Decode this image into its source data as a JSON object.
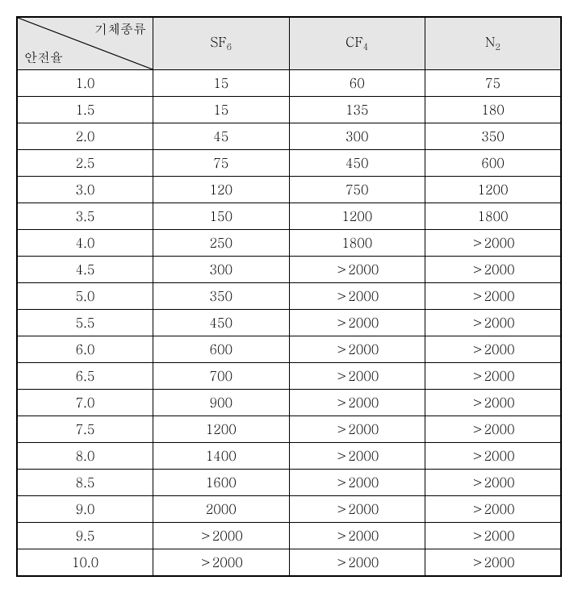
{
  "table": {
    "diag_header": {
      "top": "기체종류",
      "bottom": "안전율"
    },
    "column_headers": [
      {
        "text": "SF",
        "sub": "6"
      },
      {
        "text": "CF",
        "sub": "4"
      },
      {
        "text": "N",
        "sub": "2"
      }
    ],
    "rows": [
      {
        "label": "1.0",
        "cells": [
          "15",
          "60",
          "75"
        ]
      },
      {
        "label": "1.5",
        "cells": [
          "15",
          "135",
          "180"
        ]
      },
      {
        "label": "2.0",
        "cells": [
          "45",
          "300",
          "350"
        ]
      },
      {
        "label": "2.5",
        "cells": [
          "75",
          "450",
          "600"
        ]
      },
      {
        "label": "3.0",
        "cells": [
          "120",
          "750",
          "1200"
        ]
      },
      {
        "label": "3.5",
        "cells": [
          "150",
          "1200",
          "1800"
        ]
      },
      {
        "label": "4.0",
        "cells": [
          "250",
          "1800",
          "＞2000"
        ]
      },
      {
        "label": "4.5",
        "cells": [
          "300",
          "＞2000",
          "＞2000"
        ]
      },
      {
        "label": "5.0",
        "cells": [
          "350",
          "＞2000",
          "＞2000"
        ]
      },
      {
        "label": "5.5",
        "cells": [
          "450",
          "＞2000",
          "＞2000"
        ]
      },
      {
        "label": "6.0",
        "cells": [
          "600",
          "＞2000",
          "＞2000"
        ]
      },
      {
        "label": "6.5",
        "cells": [
          "700",
          "＞2000",
          "＞2000"
        ]
      },
      {
        "label": "7.0",
        "cells": [
          "900",
          "＞2000",
          "＞2000"
        ]
      },
      {
        "label": "7.5",
        "cells": [
          "1200",
          "＞2000",
          "＞2000"
        ]
      },
      {
        "label": "8.0",
        "cells": [
          "1400",
          "＞2000",
          "＞2000"
        ]
      },
      {
        "label": "8.5",
        "cells": [
          "1600",
          "＞2000",
          "＞2000"
        ]
      },
      {
        "label": "9.0",
        "cells": [
          "2000",
          "＞2000",
          "＞2000"
        ]
      },
      {
        "label": "9.5",
        "cells": [
          "＞2000",
          "＞2000",
          "＞2000"
        ]
      },
      {
        "label": "10.0",
        "cells": [
          "＞2000",
          "＞2000",
          "＞2000"
        ]
      }
    ],
    "styles": {
      "header_bg": "#e6e6e6",
      "border_color": "#000000",
      "font_size": 16,
      "sub_font_size": 11,
      "cell_bg": "#ffffff"
    }
  }
}
